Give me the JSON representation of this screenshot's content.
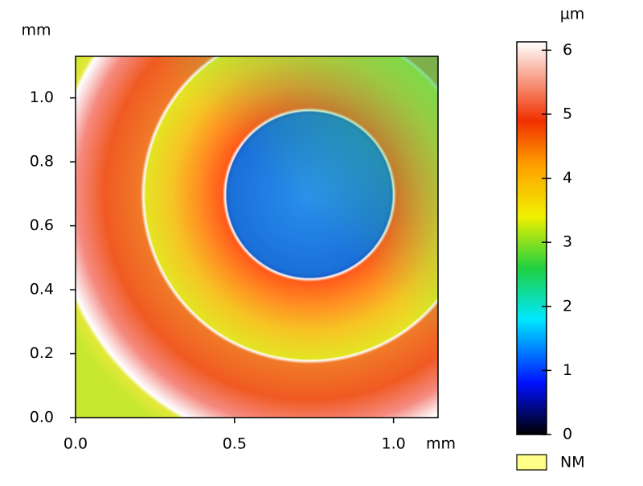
{
  "chart_data": {
    "type": "heatmap",
    "xlabel": "mm",
    "ylabel": "mm",
    "xlim": [
      0,
      1.14
    ],
    "ylim": [
      0,
      1.13
    ],
    "xticks": [
      {
        "value": 0,
        "label": "0.0"
      },
      {
        "value": 0.5,
        "label": "0.5"
      },
      {
        "value": 1,
        "label": "1.0"
      }
    ],
    "yticks": [
      {
        "value": 0,
        "label": "0.0"
      },
      {
        "value": 0.2,
        "label": "0.2"
      },
      {
        "value": 0.4,
        "label": "0.4"
      },
      {
        "value": 0.6,
        "label": "0.6"
      },
      {
        "value": 0.8,
        "label": "0.8"
      },
      {
        "value": 1,
        "label": "1.0"
      }
    ],
    "colorbar": {
      "label": "µm",
      "lim": [
        0,
        6.13
      ],
      "ticks": [
        0,
        1,
        2,
        3,
        4,
        5,
        6
      ],
      "colormap": [
        {
          "value": 0,
          "color": "#000000"
        },
        {
          "value": 0.8,
          "color": "#0010ff"
        },
        {
          "value": 1.8,
          "color": "#00e8ff"
        },
        {
          "value": 2.6,
          "color": "#20d040"
        },
        {
          "value": 3.4,
          "color": "#f0f000"
        },
        {
          "value": 4.2,
          "color": "#ffa000"
        },
        {
          "value": 4.9,
          "color": "#f03000"
        },
        {
          "value": 6.13,
          "color": "#ffffff"
        }
      ]
    },
    "legend": {
      "label": "NM",
      "color": "#ffff88"
    }
  }
}
